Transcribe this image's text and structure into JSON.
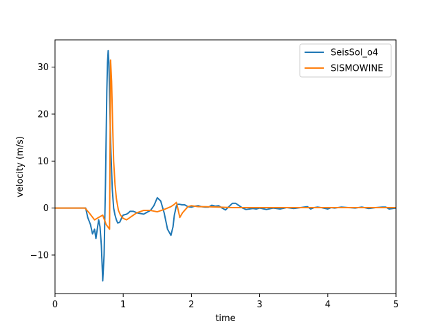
{
  "chart_data": {
    "type": "line",
    "title": "",
    "xlabel": "time",
    "ylabel": "velocity (m/s)",
    "xlim": [
      0,
      5
    ],
    "ylim": [
      -18.2,
      35.8
    ],
    "grid": false,
    "legend_position": "top-right",
    "x_ticks": [
      "0",
      "1",
      "2",
      "3",
      "4",
      "5"
    ],
    "y_ticks": [
      "−10",
      "0",
      "10",
      "20",
      "30"
    ],
    "colors": {
      "SeisSol_o4": "#1f77b4",
      "SISMOWINE": "#ff7f0e"
    },
    "series": [
      {
        "name": "SeisSol_o4",
        "x": [
          0,
          0.45,
          0.48,
          0.52,
          0.55,
          0.58,
          0.6,
          0.62,
          0.64,
          0.66,
          0.68,
          0.7,
          0.72,
          0.74,
          0.76,
          0.77,
          0.78,
          0.79,
          0.8,
          0.82,
          0.84,
          0.86,
          0.88,
          0.9,
          0.92,
          0.95,
          0.98,
          1.0,
          1.05,
          1.08,
          1.1,
          1.15,
          1.2,
          1.3,
          1.4,
          1.45,
          1.5,
          1.55,
          1.6,
          1.65,
          1.7,
          1.73,
          1.75,
          1.78,
          1.8,
          1.83,
          1.86,
          1.9,
          1.95,
          2.0,
          2.05,
          2.1,
          2.15,
          2.2,
          2.25,
          2.3,
          2.35,
          2.4,
          2.45,
          2.5,
          2.55,
          2.6,
          2.65,
          2.7,
          2.75,
          2.8,
          2.85,
          2.9,
          2.95,
          3.0,
          3.1,
          3.2,
          3.3,
          3.4,
          3.5,
          3.6,
          3.7,
          3.75,
          3.8,
          3.85,
          3.9,
          4.0,
          4.05,
          4.1,
          4.2,
          4.3,
          4.4,
          4.5,
          4.6,
          4.7,
          4.8,
          4.85,
          4.9,
          5.0
        ],
        "values": [
          0,
          0,
          -2,
          -3.5,
          -5.5,
          -4.5,
          -6.5,
          -4.5,
          -2.5,
          -4,
          -8,
          -15.5,
          -10,
          5,
          25,
          31,
          33.5,
          31,
          24,
          12,
          4,
          0,
          -1.5,
          -2.5,
          -3.2,
          -3,
          -2,
          -1.5,
          -1.3,
          -1,
          -0.7,
          -0.7,
          -1,
          -1.3,
          -0.5,
          0.5,
          2.2,
          1.5,
          -1,
          -4.5,
          -5.8,
          -4,
          -1.5,
          0.5,
          0.8,
          0.8,
          0.7,
          0.7,
          0.3,
          0.2,
          0.4,
          0.5,
          0.3,
          0.2,
          0.2,
          0.6,
          0.4,
          0.5,
          0,
          -0.4,
          0.3,
          1,
          1,
          0.5,
          0,
          -0.3,
          -0.2,
          -0.1,
          -0.2,
          0,
          -0.3,
          0,
          -0.2,
          0.1,
          -0.1,
          0.1,
          0.3,
          -0.2,
          0.1,
          0.2,
          0.1,
          -0.2,
          0.1,
          0,
          0.2,
          0.1,
          0,
          0.2,
          -0.1,
          0.1,
          0.2,
          0.2,
          -0.2,
          0
        ]
      },
      {
        "name": "SISMOWINE",
        "x": [
          0,
          0.44,
          0.5,
          0.58,
          0.64,
          0.7,
          0.75,
          0.8,
          0.815,
          0.83,
          0.845,
          0.86,
          0.88,
          0.9,
          0.93,
          0.96,
          1.0,
          1.05,
          1.1,
          1.15,
          1.2,
          1.3,
          1.4,
          1.5,
          1.6,
          1.7,
          1.75,
          1.78,
          1.8,
          1.83,
          1.87,
          1.9,
          1.95,
          2.0,
          2.1,
          2.2,
          2.4,
          2.6,
          2.8,
          3.0,
          3.5,
          4.0,
          4.5,
          5.0
        ],
        "values": [
          0,
          0,
          -1,
          -2.5,
          -2,
          -1.5,
          -3.5,
          -4.5,
          31.5,
          27,
          18,
          10,
          5,
          2,
          -0.5,
          -1.5,
          -2.2,
          -2.5,
          -2,
          -1.5,
          -1,
          -0.5,
          -0.5,
          -0.8,
          -0.3,
          0.3,
          0.8,
          1.2,
          0,
          -2,
          -1,
          -0.5,
          0.3,
          0.5,
          0.3,
          0.3,
          0.2,
          0.1,
          0.1,
          0.1,
          0.1,
          0.1,
          0.1,
          0.1
        ]
      }
    ]
  }
}
